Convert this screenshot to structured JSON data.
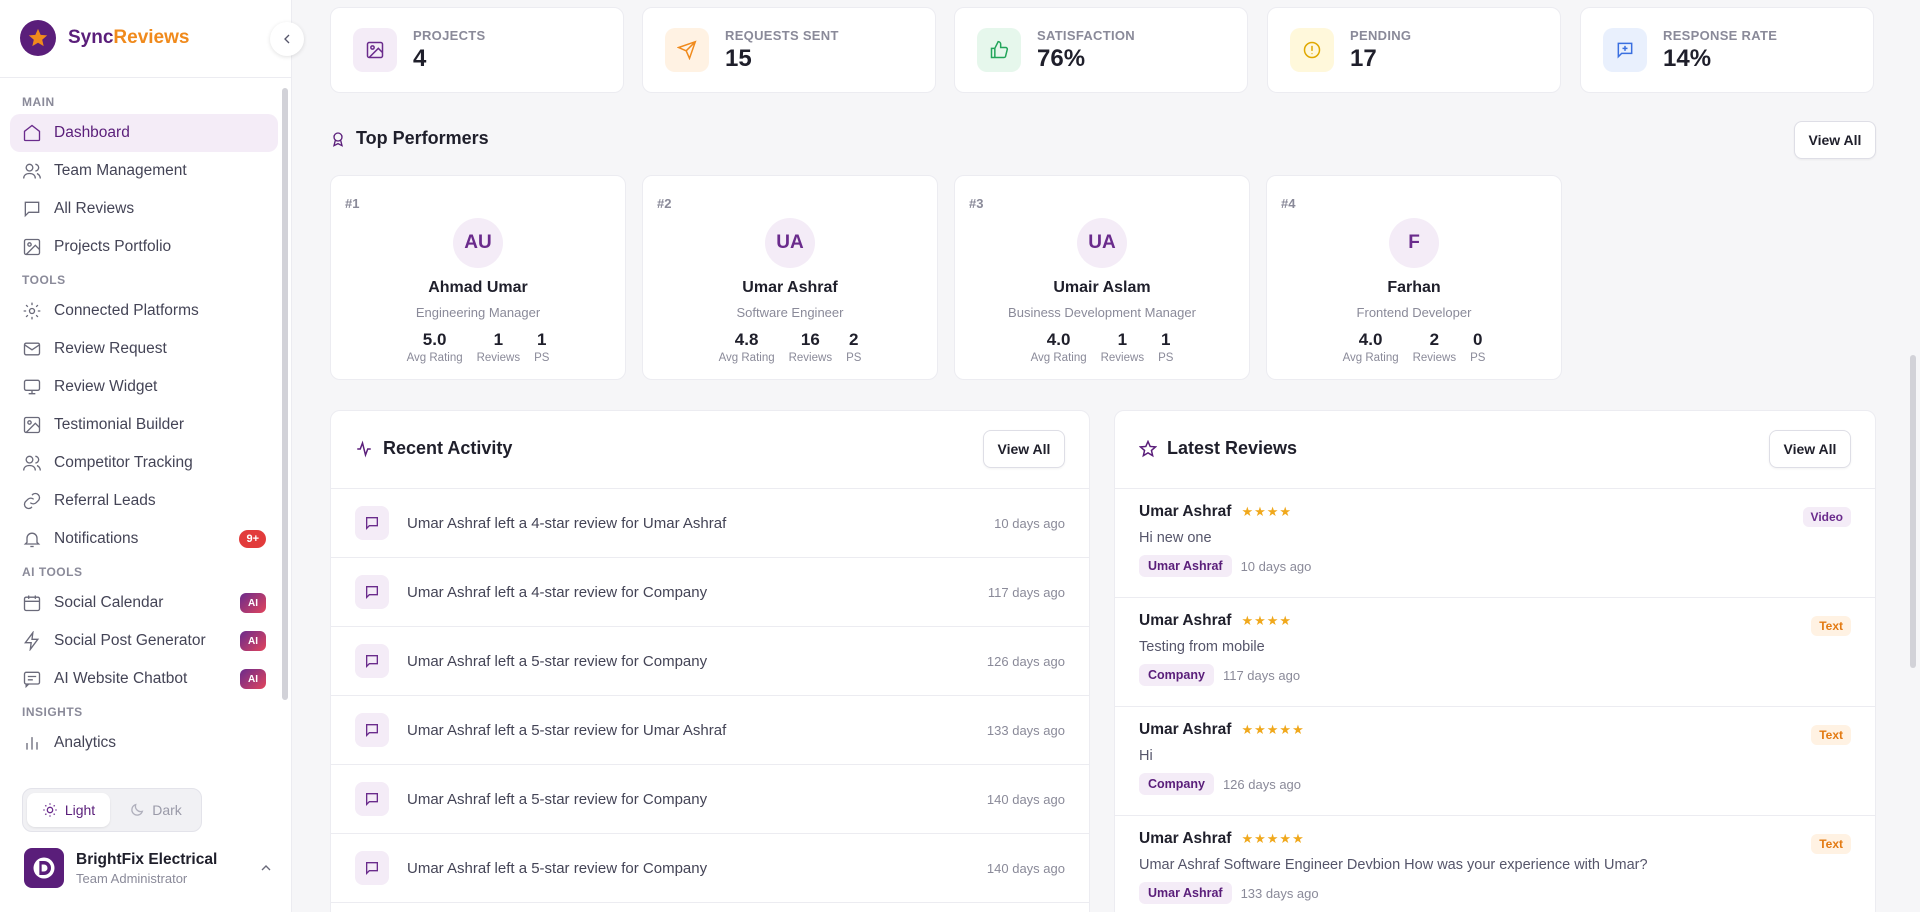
{
  "brand": {
    "name_part1": "Sync",
    "name_part2": "Reviews"
  },
  "nav": {
    "main_label": "MAIN",
    "main_items": [
      {
        "label": "Dashboard",
        "icon": "home-icon"
      },
      {
        "label": "Team Management",
        "icon": "users-icon"
      },
      {
        "label": "All Reviews",
        "icon": "message-icon"
      },
      {
        "label": "Projects Portfolio",
        "icon": "image-icon"
      }
    ],
    "tools_label": "TOOLS",
    "tools_items": [
      {
        "label": "Connected Platforms",
        "icon": "gear-icon"
      },
      {
        "label": "Review Request",
        "icon": "mail-icon"
      },
      {
        "label": "Review Widget",
        "icon": "monitor-icon"
      },
      {
        "label": "Testimonial Builder",
        "icon": "image-icon"
      },
      {
        "label": "Competitor Tracking",
        "icon": "users-icon"
      },
      {
        "label": "Referral Leads",
        "icon": "link-icon"
      },
      {
        "label": "Notifications",
        "icon": "bell-icon",
        "badge": "9+"
      }
    ],
    "ai_label": "AI TOOLS",
    "ai_items": [
      {
        "label": "Social Calendar",
        "icon": "calendar-icon",
        "badge": "AI"
      },
      {
        "label": "Social Post Generator",
        "icon": "bolt-icon",
        "badge": "AI"
      },
      {
        "label": "AI Website Chatbot",
        "icon": "chat-icon",
        "badge": "AI"
      }
    ],
    "insights_label": "INSIGHTS",
    "insights_items": [
      {
        "label": "Analytics",
        "icon": "bar-chart-icon"
      }
    ]
  },
  "theme": {
    "light": "Light",
    "dark": "Dark",
    "selected": "Light"
  },
  "user": {
    "name": "BrightFix Electrical",
    "role": "Team Administrator"
  },
  "stats": [
    {
      "label": "PROJECTS",
      "value": "4",
      "icon": "image-icon",
      "color": "#6a2b8c",
      "bg": "#f4ecf7"
    },
    {
      "label": "REQUESTS SENT",
      "value": "15",
      "icon": "send-icon",
      "color": "#f08a1c",
      "bg": "#fff2e3"
    },
    {
      "label": "SATISFACTION",
      "value": "76%",
      "icon": "thumbs-up-icon",
      "color": "#22a55a",
      "bg": "#e6f7ec"
    },
    {
      "label": "PENDING",
      "value": "17",
      "icon": "alert-circle-icon",
      "color": "#e0a800",
      "bg": "#fff8db"
    },
    {
      "label": "RESPONSE RATE",
      "value": "14%",
      "icon": "message-plus-icon",
      "color": "#3a6fe0",
      "bg": "#e9f0fd"
    }
  ],
  "top_performers": {
    "title": "Top Performers",
    "view_all": "View All",
    "items": [
      {
        "rank": "#1",
        "initials": "AU",
        "name": "Ahmad Umar",
        "role": "Engineering Manager",
        "avg": "5.0",
        "reviews": "1",
        "ps": "1"
      },
      {
        "rank": "#2",
        "initials": "UA",
        "name": "Umar Ashraf",
        "role": "Software Engineer",
        "avg": "4.8",
        "reviews": "16",
        "ps": "2"
      },
      {
        "rank": "#3",
        "initials": "UA",
        "name": "Umair Aslam",
        "role": "Business Development Manager",
        "avg": "4.0",
        "reviews": "1",
        "ps": "1"
      },
      {
        "rank": "#4",
        "initials": "F",
        "name": "Farhan",
        "role": "Frontend Developer",
        "avg": "4.0",
        "reviews": "2",
        "ps": "0"
      }
    ],
    "labels": {
      "avg": "Avg Rating",
      "reviews": "Reviews",
      "ps": "PS"
    }
  },
  "recent_activity": {
    "title": "Recent Activity",
    "view_all": "View All",
    "items": [
      {
        "text": "Umar Ashraf left a 4-star review for Umar Ashraf",
        "time": "10 days ago"
      },
      {
        "text": "Umar Ashraf left a 4-star review for Company",
        "time": "117 days ago"
      },
      {
        "text": "Umar Ashraf left a 5-star review for Company",
        "time": "126 days ago"
      },
      {
        "text": "Umar Ashraf left a 5-star review for Umar Ashraf",
        "time": "133 days ago"
      },
      {
        "text": "Umar Ashraf left a 5-star review for Company",
        "time": "140 days ago"
      },
      {
        "text": "Umar Ashraf left a 5-star review for Company",
        "time": "140 days ago"
      }
    ]
  },
  "latest_reviews": {
    "title": "Latest Reviews",
    "view_all": "View All",
    "items": [
      {
        "name": "Umar Ashraf",
        "stars": "★★★★",
        "text": "Hi new one",
        "tag": "Umar Ashraf",
        "time": "10 days ago",
        "type": "Video"
      },
      {
        "name": "Umar Ashraf",
        "stars": "★★★★",
        "text": "Testing from mobile",
        "tag": "Company",
        "time": "117 days ago",
        "type": "Text"
      },
      {
        "name": "Umar Ashraf",
        "stars": "★★★★★",
        "text": "Hi",
        "tag": "Company",
        "time": "126 days ago",
        "type": "Text"
      },
      {
        "name": "Umar Ashraf",
        "stars": "★★★★★",
        "text": "Umar Ashraf Software Engineer Devbion How was your experience with Umar?",
        "tag": "Umar Ashraf",
        "time": "133 days ago",
        "type": "Text"
      }
    ]
  }
}
